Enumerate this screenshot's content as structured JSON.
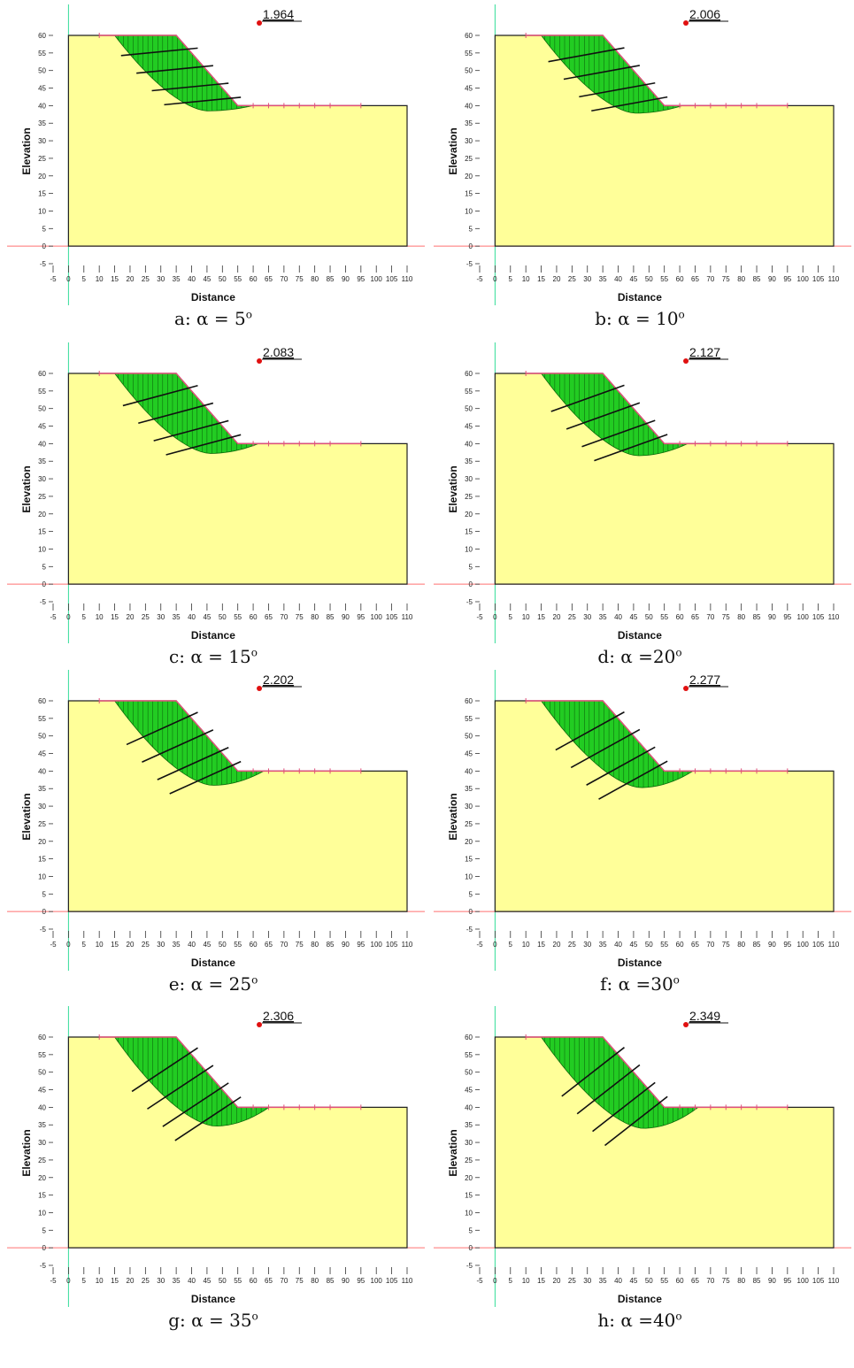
{
  "axes": {
    "xlabel": "Distance",
    "ylabel": "Elevation",
    "x_ticks": [
      "-5",
      "0",
      "5",
      "10",
      "15",
      "20",
      "25",
      "30",
      "35",
      "40",
      "45",
      "50",
      "55",
      "60",
      "65",
      "70",
      "75",
      "80",
      "85",
      "90",
      "95",
      "100",
      "105",
      "110"
    ],
    "y_ticks": [
      "-5",
      "0",
      "5",
      "10",
      "15",
      "20",
      "25",
      "30",
      "35",
      "40",
      "45",
      "50",
      "55",
      "60"
    ]
  },
  "colors": {
    "soil": "#ffff99",
    "slip_mass": "#22cc22",
    "ground_line": "#e0507a",
    "anchor": "#111111",
    "center_point": "#e01010",
    "axis_line": "#ff7070",
    "vertical_axis": "#33dd99"
  },
  "panels": [
    {
      "caption_prefix": "a: α = 5",
      "degree": "o",
      "fos": "1.964",
      "alpha": 5
    },
    {
      "caption_prefix": "b: α = 10",
      "degree": "o",
      "fos": "2.006",
      "alpha": 10
    },
    {
      "caption_prefix": "c: α = 15",
      "degree": "o",
      "fos": "2.083",
      "alpha": 15
    },
    {
      "caption_prefix": "d: α =20",
      "degree": "o",
      "fos": "2.127",
      "alpha": 20
    },
    {
      "caption_prefix": "e: α = 25",
      "degree": "o",
      "fos": "2.202",
      "alpha": 25
    },
    {
      "caption_prefix": "f: α =30",
      "degree": "o",
      "fos": "2.277",
      "alpha": 30
    },
    {
      "caption_prefix": "g: α = 35",
      "degree": "o",
      "fos": "2.306",
      "alpha": 35
    },
    {
      "caption_prefix": "h: α =40",
      "degree": "o",
      "fos": "2.349",
      "alpha": 40
    }
  ]
}
